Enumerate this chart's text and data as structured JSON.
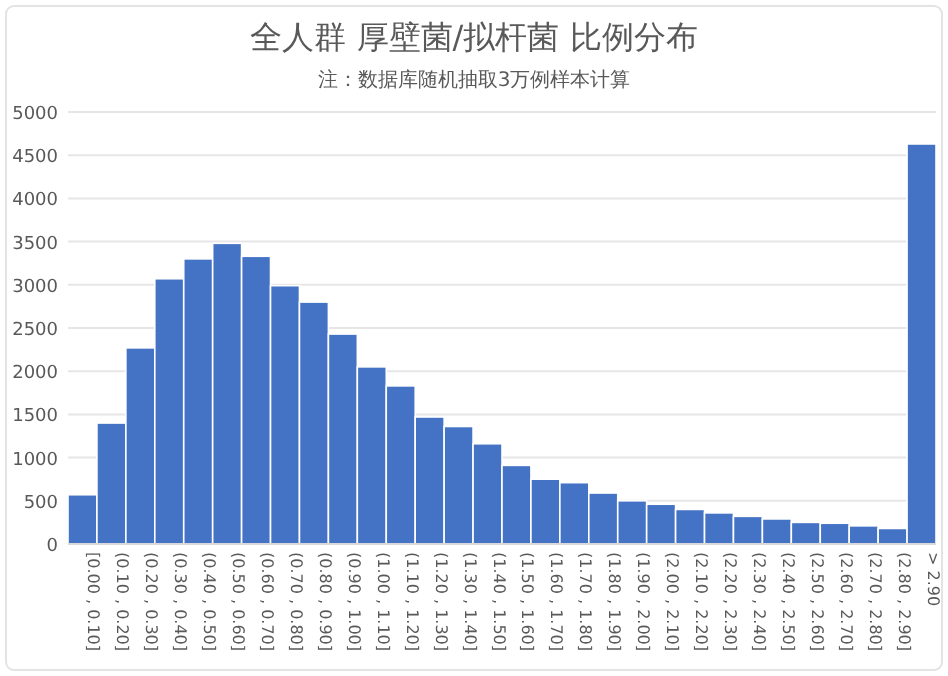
{
  "chart_data": {
    "type": "bar",
    "title": "全人群 厚壁菌/拟杆菌 比例分布",
    "subtitle": "注：数据库随机抽取3万例样本计算",
    "categories": [
      "[0.00 , 0.10]",
      "(0.10 , 0.20]",
      "(0.20 , 0.30]",
      "(0.30 , 0.40]",
      "(0.40 , 0.50]",
      "(0.50 , 0.60]",
      "(0.60 , 0.70]",
      "(0.70 , 0.80]",
      "(0.80 , 0.90]",
      "(0.90 , 1.00]",
      "(1.00 , 1.10]",
      "(1.10 , 1.20]",
      "(1.20 , 1.30]",
      "(1.30 , 1.40]",
      "(1.40 , 1.50]",
      "(1.50 , 1.60]",
      "(1.60 , 1.70]",
      "(1.70 , 1.80]",
      "(1.80 , 1.90]",
      "(1.90 , 2.00]",
      "(2.00 , 2.10]",
      "(2.10 , 2.20]",
      "(2.20 , 2.30]",
      "(2.30 , 2.40]",
      "(2.40 , 2.50]",
      "(2.50 , 2.60]",
      "(2.60 , 2.70]",
      "(2.70 , 2.80]",
      "(2.80 , 2.90]",
      "> 2.90"
    ],
    "values": [
      570,
      1400,
      2270,
      3070,
      3300,
      3480,
      3330,
      2990,
      2800,
      2430,
      2050,
      1830,
      1470,
      1360,
      1160,
      910,
      750,
      710,
      590,
      500,
      460,
      400,
      360,
      320,
      290,
      250,
      240,
      210,
      180,
      4630
    ],
    "color": "#4472c4",
    "ylim": [
      0,
      5000
    ],
    "yticks": [
      0,
      500,
      1000,
      1500,
      2000,
      2500,
      3000,
      3500,
      4000,
      4500,
      5000
    ],
    "grid": "y"
  }
}
